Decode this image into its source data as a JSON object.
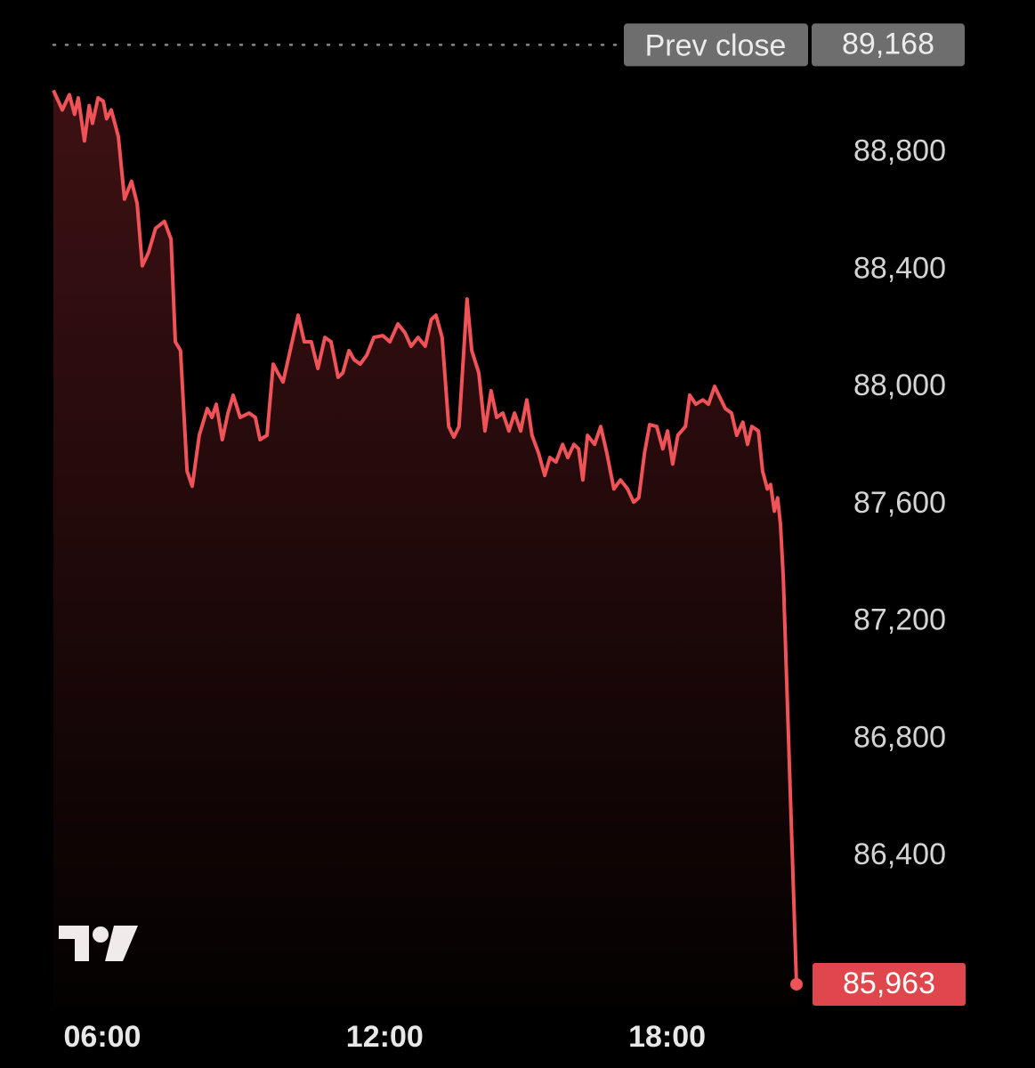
{
  "chart_data": {
    "type": "line",
    "x": [
      4.96,
      5.15,
      5.3,
      5.41,
      5.49,
      5.62,
      5.72,
      5.79,
      5.91,
      6.02,
      6.09,
      6.19,
      6.34,
      6.47,
      6.62,
      6.74,
      6.85,
      6.98,
      7.13,
      7.32,
      7.46,
      7.55,
      7.66,
      7.8,
      7.91,
      8.06,
      8.23,
      8.33,
      8.42,
      8.55,
      8.67,
      8.78,
      8.93,
      9.12,
      9.25,
      9.35,
      9.5,
      9.63,
      9.73,
      9.84,
      9.97,
      10.16,
      10.29,
      10.44,
      10.58,
      10.73,
      10.86,
      11.01,
      11.11,
      11.24,
      11.35,
      11.48,
      11.62,
      11.77,
      11.96,
      12.11,
      12.28,
      12.43,
      12.56,
      12.71,
      12.86,
      12.99,
      13.09,
      13.22,
      13.36,
      13.47,
      13.58,
      13.75,
      13.85,
      14.0,
      14.13,
      14.26,
      14.38,
      14.51,
      14.64,
      14.76,
      14.89,
      15.02,
      15.13,
      15.27,
      15.4,
      15.51,
      15.64,
      15.78,
      15.89,
      16.02,
      16.12,
      16.21,
      16.31,
      16.46,
      16.59,
      16.72,
      16.87,
      17.01,
      17.16,
      17.29,
      17.4,
      17.52,
      17.63,
      17.78,
      17.91,
      18.01,
      18.12,
      18.23,
      18.39,
      18.48,
      18.61,
      18.76,
      18.88,
      19.01,
      19.1,
      19.24,
      19.37,
      19.48,
      19.61,
      19.71,
      19.8,
      19.94,
      20.03,
      20.13,
      20.2,
      20.28,
      20.35,
      20.41,
      20.47,
      20.75
    ],
    "series": [
      {
        "color": "#ef5257",
        "values": [
          89013,
          88946,
          88998,
          88931,
          88987,
          88840,
          88961,
          88900,
          88987,
          88976,
          88916,
          88946,
          88855,
          88642,
          88703,
          88627,
          88414,
          88459,
          88542,
          88566,
          88505,
          88155,
          88125,
          87714,
          87662,
          87836,
          87927,
          87897,
          87942,
          87821,
          87912,
          87973,
          87897,
          87912,
          87897,
          87821,
          87836,
          88079,
          88049,
          88018,
          88110,
          88246,
          88155,
          88155,
          88064,
          88170,
          88155,
          88034,
          88049,
          88125,
          88094,
          88079,
          88110,
          88170,
          88176,
          88155,
          88216,
          88186,
          88140,
          88170,
          88140,
          88231,
          88246,
          88170,
          87866,
          87830,
          87866,
          88301,
          88125,
          88049,
          87851,
          87988,
          87897,
          87912,
          87851,
          87912,
          87851,
          87957,
          87836,
          87775,
          87699,
          87760,
          87745,
          87805,
          87760,
          87805,
          87790,
          87684,
          87836,
          87805,
          87866,
          87775,
          87653,
          87684,
          87653,
          87608,
          87623,
          87775,
          87872,
          87866,
          87790,
          87851,
          87738,
          87836,
          87866,
          87973,
          87942,
          87957,
          87942,
          88003,
          87973,
          87927,
          87912,
          87836,
          87881,
          87805,
          87866,
          87851,
          87714,
          87653,
          87668,
          87577,
          87623,
          87532,
          87349,
          85963
        ]
      }
    ],
    "xlim": [
      4.96,
      20.75
    ],
    "xticks": [
      {
        "value": 6,
        "label": "06:00"
      },
      {
        "value": 12,
        "label": "12:00"
      },
      {
        "value": 18,
        "label": "18:00"
      }
    ],
    "ylim": [
      85890,
      89230
    ],
    "yticks": [
      {
        "value": 86400,
        "label": "86,400"
      },
      {
        "value": 86800,
        "label": "86,800"
      },
      {
        "value": 87200,
        "label": "87,200"
      },
      {
        "value": 87600,
        "label": "87,600"
      },
      {
        "value": 88000,
        "label": "88,000"
      },
      {
        "value": 88400,
        "label": "88,400"
      },
      {
        "value": 88800,
        "label": "88,800"
      }
    ],
    "prev_close": {
      "label": "Prev close",
      "value": 89168,
      "value_label": "89,168"
    },
    "last_price": {
      "value": 85963,
      "label": "85,963"
    }
  }
}
